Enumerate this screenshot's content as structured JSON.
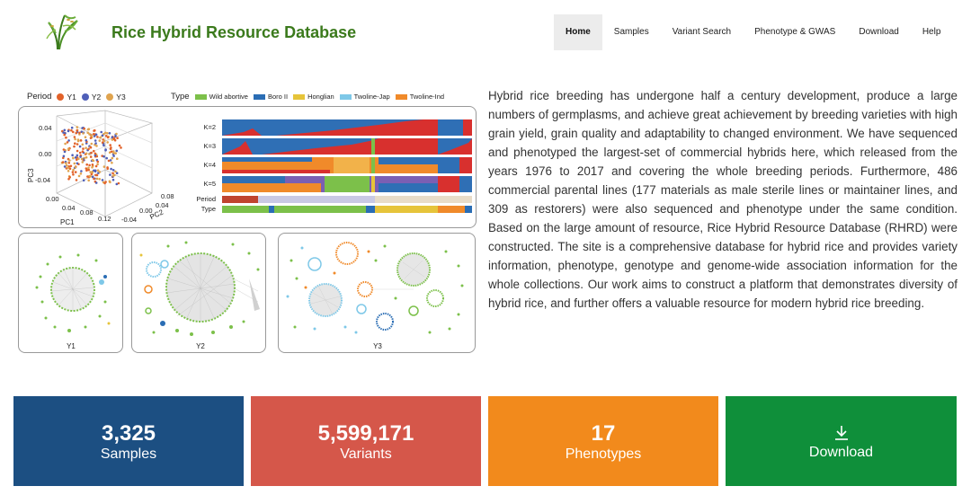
{
  "header": {
    "site_title": "Rice Hybrid Resource Database",
    "logo_icon": "rice-plant-logo",
    "nav": [
      {
        "label": "Home",
        "active": true
      },
      {
        "label": "Samples",
        "active": false
      },
      {
        "label": "Variant Search",
        "active": false
      },
      {
        "label": "Phenotype & GWAS",
        "active": false
      },
      {
        "label": "Download",
        "active": false
      },
      {
        "label": "Help",
        "active": false
      }
    ]
  },
  "figure": {
    "period_label": "Period",
    "periods": [
      {
        "label": "Y1",
        "color": "#e2622a"
      },
      {
        "label": "Y2",
        "color": "#4f5fb8"
      },
      {
        "label": "Y3",
        "color": "#e0a44f"
      }
    ],
    "type_label": "Type",
    "types": [
      {
        "label": "Wild abortive",
        "color": "#7cc04a"
      },
      {
        "label": "Boro II",
        "color": "#2a6db4"
      },
      {
        "label": "Honglian",
        "color": "#e6c43a"
      },
      {
        "label": "Twoline-Jap",
        "color": "#7ec8e8"
      },
      {
        "label": "Twoline-Ind",
        "color": "#f08a2a"
      }
    ],
    "pca": {
      "ylabel": "PC3",
      "xlabel": "PC1",
      "zlabel": "PC2",
      "y_ticks": [
        "0.04",
        "0.00",
        "-0.04"
      ],
      "x_ticks": [
        "0.00",
        "0.04",
        "0.08",
        "0.12"
      ],
      "z_ticks": [
        "-0.04",
        "0.00",
        "0.04",
        "0.08"
      ]
    },
    "structure_rows": [
      "K=2",
      "K=3",
      "K=4",
      "K=5",
      "Period",
      "Type"
    ],
    "networks": [
      "Y1",
      "Y2",
      "Y3"
    ]
  },
  "intro_text": "Hybrid rice breeding has undergone half a century development, produce a large numbers of germplasms, and achieve great achievement by breeding varieties with high grain yield, grain quality and adaptability to changed environment. We have sequenced and phenotyped the largest-set of commercial hybrids here, which released from the years 1976 to 2017 and covering the whole breeding periods. Furthermore, 486 commercial parental lines (177 materials as male sterile lines or maintainer lines, and 309 as restorers) were also sequenced and phenotype under the same condition. Based on the large amount of resource, Rice Hybrid Resource Database (RHRD) were constructed. The site is a comprehensive database for hybrid rice and provides variety information, phenotype, genotype and genome-wide association information for the whole collections. Our work aims to construct a platform that demonstrates diversity of hybrid rice, and further offers a valuable resource for modern hybrid rice breeding.",
  "stats": [
    {
      "value": "3,325",
      "label": "Samples",
      "color": "#1c4f82"
    },
    {
      "value": "5,599,171",
      "label": "Variants",
      "color": "#d5574a"
    },
    {
      "value": "17",
      "label": "Phenotypes",
      "color": "#f28a1c"
    },
    {
      "value": "",
      "label": "Download",
      "color": "#0f8f3a",
      "icon": "download-icon"
    }
  ]
}
